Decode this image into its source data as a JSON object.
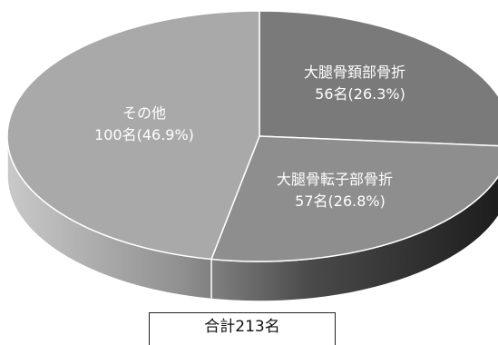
{
  "chart_data": {
    "type": "pie",
    "total_label": "合計213名",
    "slices": [
      {
        "label": "大腿骨頚部骨折",
        "value": 56,
        "percent": 26.3,
        "value_text": "56名(26.3%)",
        "color": "#7a7a7a"
      },
      {
        "label": "大腿骨転子部骨折",
        "value": 57,
        "percent": 26.8,
        "value_text": "57名(26.8%)",
        "color": "#8e8e8e"
      },
      {
        "label": "その他",
        "value": 100,
        "percent": 46.9,
        "value_text": "100名(46.9%)",
        "color": "#a9a9a9"
      }
    ]
  }
}
